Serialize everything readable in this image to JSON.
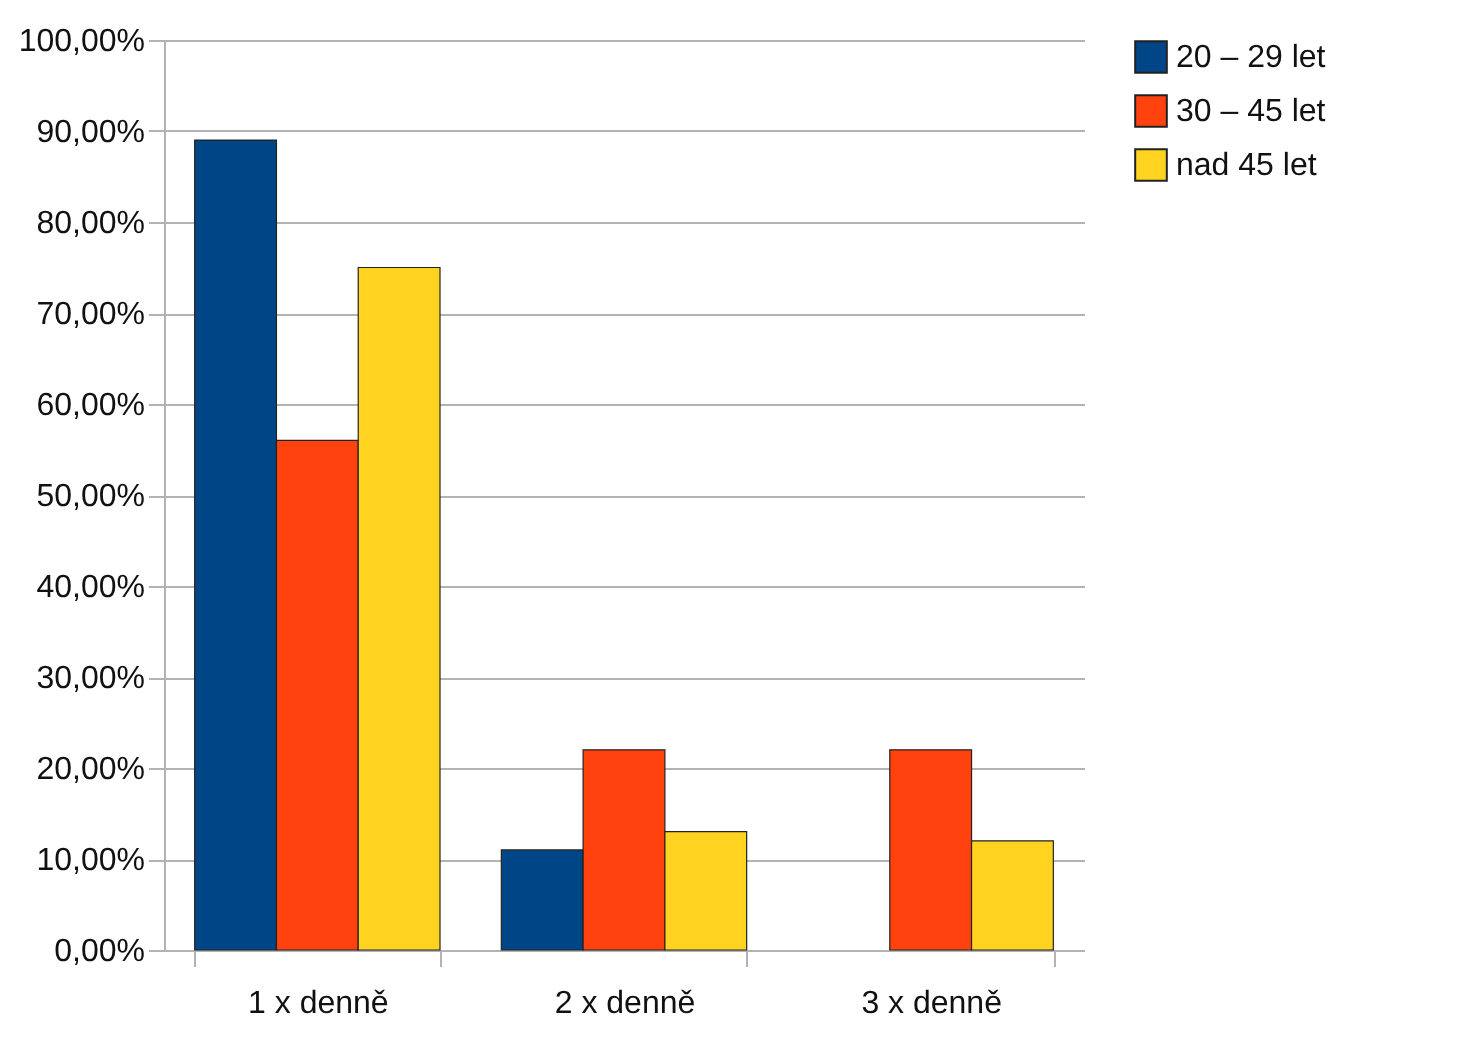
{
  "chart_data": {
    "type": "bar",
    "categories": [
      "1 x denně",
      "2 x denně",
      "3 x denně"
    ],
    "series": [
      {
        "name": "20 – 29 let",
        "color": "#004586",
        "values": [
          89,
          11,
          null
        ]
      },
      {
        "name": "30 – 45 let",
        "color": "#ff420e",
        "values": [
          56,
          22,
          22
        ]
      },
      {
        "name": "nad 45 let",
        "color": "#ffd320",
        "values": [
          75,
          13,
          12
        ]
      }
    ],
    "ylim": [
      0,
      100
    ],
    "yticks": [
      {
        "value": 0,
        "label": "0,00%"
      },
      {
        "value": 10,
        "label": "10,00%"
      },
      {
        "value": 20,
        "label": "20,00%"
      },
      {
        "value": 30,
        "label": "30,00%"
      },
      {
        "value": 40,
        "label": "40,00%"
      },
      {
        "value": 50,
        "label": "50,00%"
      },
      {
        "value": 60,
        "label": "60,00%"
      },
      {
        "value": 70,
        "label": "70,00%"
      },
      {
        "value": 80,
        "label": "80,00%"
      },
      {
        "value": 90,
        "label": "90,00%"
      },
      {
        "value": 100,
        "label": "100,00%"
      }
    ],
    "grid": "y",
    "legend": "right"
  }
}
